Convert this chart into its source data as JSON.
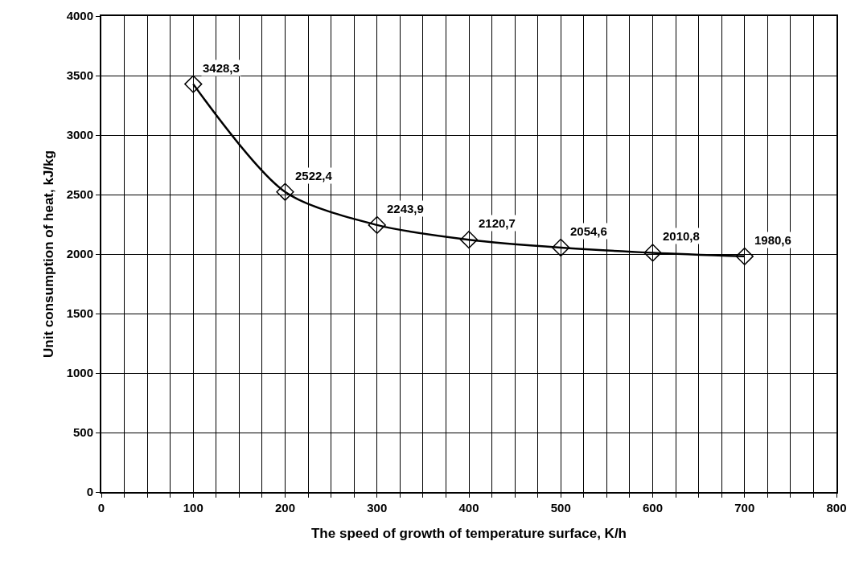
{
  "chart_data": {
    "type": "line",
    "xlabel": "The speed of growth of temperature surface, K/h",
    "ylabel": "Unit consumption of heat, kJ/kg",
    "x": [
      100,
      200,
      300,
      400,
      500,
      600,
      700
    ],
    "series": [
      {
        "color": "#000000",
        "values": [
          3428.3,
          2522.4,
          2243.9,
          2120.7,
          2054.6,
          2010.8,
          1980.6
        ],
        "value_labels": [
          "3428,3",
          "2522,4",
          "2243,9",
          "2120,7",
          "2054,6",
          "2010,8",
          "1980,6"
        ]
      }
    ],
    "xlim": [
      0,
      800
    ],
    "xticks": [
      0,
      {
        "value": 25,
        "label": null
      },
      {
        "value": 50,
        "label": null
      },
      {
        "value": 75,
        "label": null
      },
      100,
      {
        "value": 125,
        "label": null
      },
      {
        "value": 150,
        "label": null
      },
      {
        "value": 175,
        "label": null
      },
      200,
      {
        "value": 225,
        "label": null
      },
      {
        "value": 250,
        "label": null
      },
      {
        "value": 275,
        "label": null
      },
      300,
      {
        "value": 325,
        "label": null
      },
      {
        "value": 350,
        "label": null
      },
      {
        "value": 375,
        "label": null
      },
      400,
      {
        "value": 425,
        "label": null
      },
      {
        "value": 450,
        "label": null
      },
      {
        "value": 475,
        "label": null
      },
      500,
      {
        "value": 525,
        "label": null
      },
      {
        "value": 550,
        "label": null
      },
      {
        "value": 575,
        "label": null
      },
      600,
      {
        "value": 625,
        "label": null
      },
      {
        "value": 650,
        "label": null
      },
      {
        "value": 675,
        "label": null
      },
      700,
      {
        "value": 725,
        "label": null
      },
      {
        "value": 750,
        "label": null
      },
      {
        "value": 775,
        "label": null
      },
      800
    ],
    "ylim": [
      0,
      4000
    ],
    "yticks": [
      0,
      500,
      1000,
      1500,
      2000,
      2500,
      3000,
      3500,
      4000
    ],
    "grid": true,
    "marker": "diamond",
    "line_style": "solid"
  }
}
